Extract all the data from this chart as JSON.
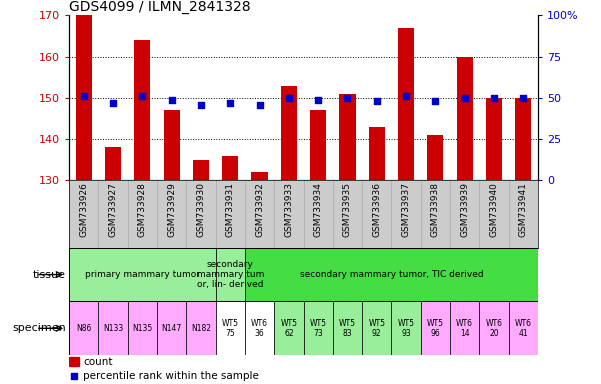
{
  "title": "GDS4099 / ILMN_2841328",
  "samples": [
    "GSM733926",
    "GSM733927",
    "GSM733928",
    "GSM733929",
    "GSM733930",
    "GSM733931",
    "GSM733932",
    "GSM733933",
    "GSM733934",
    "GSM733935",
    "GSM733936",
    "GSM733937",
    "GSM733938",
    "GSM733939",
    "GSM733940",
    "GSM733941"
  ],
  "counts": [
    170,
    138,
    164,
    147,
    135,
    136,
    132,
    153,
    147,
    151,
    143,
    167,
    141,
    160,
    150,
    150
  ],
  "percentiles": [
    51,
    47,
    51,
    49,
    46,
    47,
    46,
    50,
    49,
    50,
    48,
    51,
    48,
    50,
    50,
    50
  ],
  "ylim_left": [
    130,
    170
  ],
  "ylim_right": [
    0,
    100
  ],
  "yticks_left": [
    130,
    140,
    150,
    160,
    170
  ],
  "yticks_right": [
    0,
    25,
    50,
    75,
    100
  ],
  "bar_color": "#cc0000",
  "dot_color": "#0000cc",
  "tissue_groups": [
    {
      "label": "primary mammary tumor",
      "start": 0,
      "end": 4,
      "color": "#99ee99"
    },
    {
      "label": "secondary\nmammary tum\nor, lin- derived",
      "start": 5,
      "end": 5,
      "color": "#99ee99"
    },
    {
      "label": "secondary mammary tumor, TIC derived",
      "start": 6,
      "end": 15,
      "color": "#44dd44"
    }
  ],
  "specimen_labels": [
    "N86",
    "N133",
    "N135",
    "N147",
    "N182",
    "WT5\n75",
    "WT6\n36",
    "WT5\n62",
    "WT5\n73",
    "WT5\n83",
    "WT5\n92",
    "WT5\n93",
    "WT5\n96",
    "WT6\n14",
    "WT6\n20",
    "WT6\n41"
  ],
  "specimen_colors": [
    "#ffaaff",
    "#ffaaff",
    "#ffaaff",
    "#ffaaff",
    "#ffaaff",
    "#ffffff",
    "#ffffff",
    "#99ee99",
    "#99ee99",
    "#99ee99",
    "#99ee99",
    "#99ee99",
    "#ffaaff",
    "#ffaaff",
    "#ffaaff",
    "#ffaaff"
  ],
  "bar_color_legend": "#cc0000",
  "dot_color_legend": "#0000cc",
  "xlabel_bg": "#cccccc",
  "fig_width": 6.01,
  "fig_height": 3.84
}
